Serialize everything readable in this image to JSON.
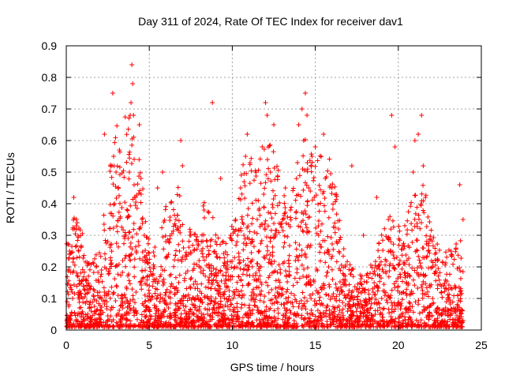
{
  "chart_data": {
    "type": "scatter",
    "title": "Day 311 of 2024, Rate Of TEC Index for receiver dav1",
    "xlabel": "GPS time / hours",
    "ylabel": "ROTI / TECUs",
    "xlim": [
      0,
      25
    ],
    "ylim": [
      0,
      0.9
    ],
    "x_ticks": [
      "0",
      "5",
      "10",
      "15",
      "20",
      "25"
    ],
    "y_ticks": [
      "0",
      "0.1",
      "0.2",
      "0.3",
      "0.4",
      "0.5",
      "0.6",
      "0.7",
      "0.8",
      "0.9"
    ],
    "grid": true,
    "marker": "plus",
    "series_color": "#ff0000",
    "series": [
      {
        "x": [
          0.05,
          0.2,
          0.35,
          0.45,
          0.6,
          0.8,
          1.0,
          1.2,
          1.5,
          1.8,
          2.0,
          2.3,
          2.5,
          2.6,
          2.8,
          2.85,
          2.9,
          3.0,
          3.2,
          3.4,
          3.6,
          3.8,
          3.9,
          3.95,
          4.0,
          4.05,
          4.1,
          4.2,
          4.4,
          4.5,
          4.7,
          5.0,
          5.3,
          5.5,
          5.8,
          6.0,
          6.3,
          6.6,
          6.9,
          7.0,
          7.2,
          7.5,
          7.8,
          8.0,
          8.3,
          8.6,
          8.8,
          9.0,
          9.3,
          9.6,
          9.9,
          10.2,
          10.5,
          10.7,
          10.8,
          10.9,
          11.0,
          11.2,
          11.5,
          11.8,
          12.0,
          12.1,
          12.3,
          12.5,
          12.6,
          12.9,
          13.2,
          13.5,
          13.8,
          14.0,
          14.2,
          14.3,
          14.4,
          14.5,
          14.6,
          14.8,
          15.0,
          15.2,
          15.5,
          15.6,
          15.8,
          16.0,
          16.4,
          16.8,
          17.2,
          17.6,
          17.9,
          18.3,
          18.7,
          19.0,
          19.4,
          19.6,
          19.8,
          20.1,
          20.5,
          20.9,
          21.0,
          21.2,
          21.4,
          21.5,
          21.8,
          22.2,
          22.6,
          23.0,
          23.4,
          23.7,
          23.9
        ],
        "y": [
          0.09,
          0.25,
          0.12,
          0.42,
          0.33,
          0.07,
          0.1,
          0.16,
          0.06,
          0.2,
          0.12,
          0.62,
          0.28,
          0.18,
          0.75,
          0.55,
          0.4,
          0.5,
          0.57,
          0.22,
          0.3,
          0.5,
          0.72,
          0.84,
          0.78,
          0.68,
          0.42,
          0.12,
          0.65,
          0.48,
          0.3,
          0.14,
          0.2,
          0.45,
          0.5,
          0.28,
          0.12,
          0.35,
          0.6,
          0.52,
          0.18,
          0.3,
          0.1,
          0.22,
          0.38,
          0.15,
          0.72,
          0.1,
          0.48,
          0.2,
          0.08,
          0.35,
          0.45,
          0.3,
          0.55,
          0.62,
          0.2,
          0.12,
          0.35,
          0.58,
          0.72,
          0.68,
          0.5,
          0.65,
          0.3,
          0.18,
          0.45,
          0.38,
          0.22,
          0.65,
          0.7,
          0.6,
          0.75,
          0.68,
          0.45,
          0.55,
          0.58,
          0.3,
          0.62,
          0.48,
          0.2,
          0.45,
          0.32,
          0.2,
          0.52,
          0.12,
          0.3,
          0.18,
          0.42,
          0.1,
          0.35,
          0.68,
          0.58,
          0.22,
          0.15,
          0.5,
          0.6,
          0.62,
          0.68,
          0.52,
          0.25,
          0.18,
          0.12,
          0.1,
          0.14,
          0.46,
          0.35
        ]
      }
    ]
  }
}
